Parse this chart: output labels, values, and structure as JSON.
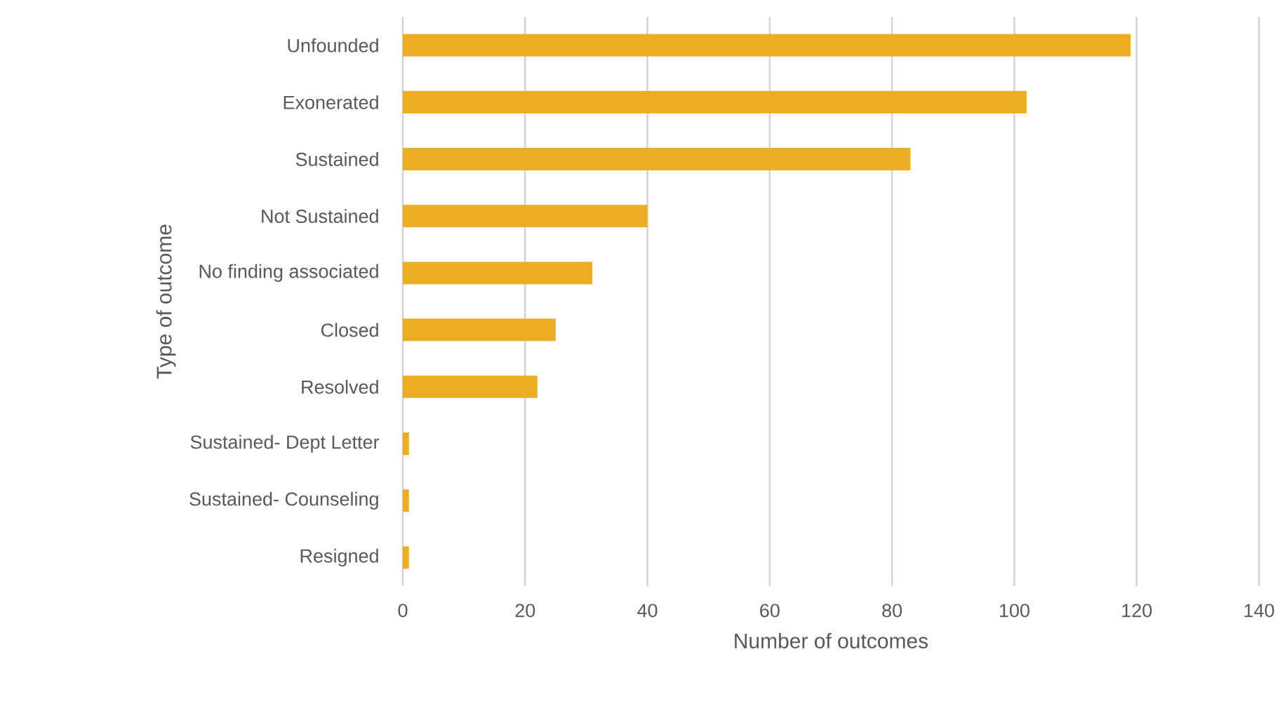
{
  "chart_data": {
    "type": "bar",
    "orientation": "horizontal",
    "categories": [
      "Unfounded",
      "Exonerated",
      "Sustained",
      "Not Sustained",
      "No finding associated",
      "Closed",
      "Resolved",
      "Sustained- Dept Letter",
      "Sustained- Counseling",
      "Resigned"
    ],
    "values": [
      119,
      102,
      83,
      40,
      31,
      25,
      22,
      1,
      1,
      1
    ],
    "color": "#ebad23",
    "xlim": [
      0,
      140
    ],
    "xticks": [
      0,
      20,
      40,
      60,
      80,
      100,
      120,
      140
    ],
    "xlabel": "Number of outcomes",
    "ylabel": "Type of outcome",
    "grid": "x"
  }
}
